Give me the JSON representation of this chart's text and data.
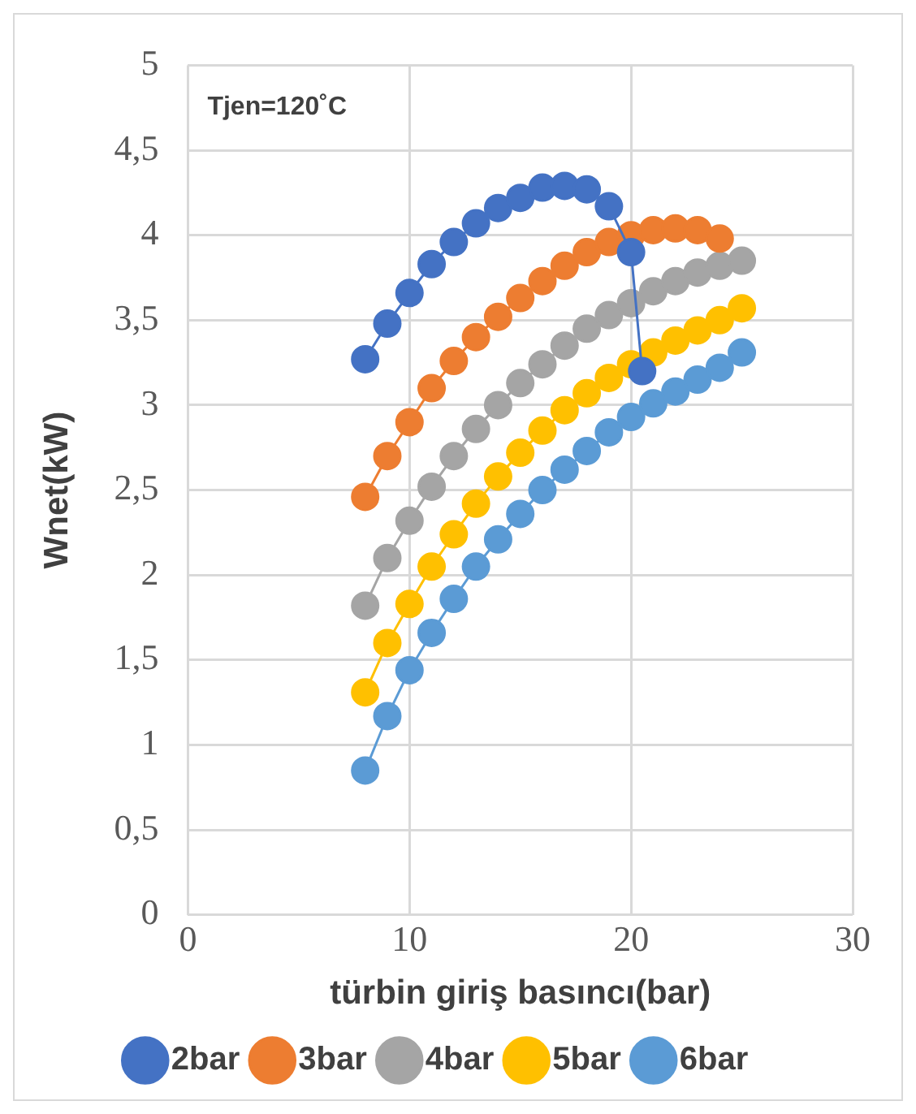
{
  "chart_data": {
    "type": "line",
    "xlabel": "türbin giriş basıncı(bar)",
    "ylabel": "Wnet(kW)",
    "annotations": [
      "Tjen=120˚C"
    ],
    "x": [
      8,
      9,
      10,
      11,
      12,
      13,
      14,
      15,
      16,
      17,
      18,
      19,
      20,
      21,
      22,
      23,
      24,
      25
    ],
    "series": [
      {
        "name": "2bar",
        "color": "#4472c4",
        "x": [
          8,
          9,
          10,
          11,
          12,
          13,
          14,
          15,
          16,
          17,
          18,
          19,
          20,
          20.5
        ],
        "values": [
          3.27,
          3.48,
          3.66,
          3.83,
          3.96,
          4.07,
          4.16,
          4.22,
          4.28,
          4.29,
          4.27,
          4.17,
          3.9,
          3.2
        ]
      },
      {
        "name": "3bar",
        "color": "#ed7d31",
        "x": [
          8,
          9,
          10,
          11,
          12,
          13,
          14,
          15,
          16,
          17,
          18,
          19,
          20,
          21,
          22,
          23,
          24
        ],
        "values": [
          2.46,
          2.7,
          2.9,
          3.1,
          3.26,
          3.4,
          3.52,
          3.63,
          3.73,
          3.82,
          3.9,
          3.96,
          4.0,
          4.03,
          4.04,
          4.03,
          3.98
        ]
      },
      {
        "name": "4bar",
        "color": "#a5a5a5",
        "values": [
          1.82,
          2.1,
          2.32,
          2.52,
          2.7,
          2.86,
          3.0,
          3.13,
          3.24,
          3.35,
          3.45,
          3.53,
          3.6,
          3.67,
          3.73,
          3.78,
          3.82,
          3.85
        ]
      },
      {
        "name": "5bar",
        "color": "#ffc000",
        "values": [
          1.31,
          1.6,
          1.83,
          2.05,
          2.24,
          2.42,
          2.58,
          2.72,
          2.85,
          2.97,
          3.07,
          3.16,
          3.24,
          3.31,
          3.38,
          3.44,
          3.5,
          3.57
        ]
      },
      {
        "name": "6bar",
        "color": "#5b9bd5",
        "values": [
          0.85,
          1.17,
          1.44,
          1.66,
          1.86,
          2.05,
          2.21,
          2.36,
          2.5,
          2.62,
          2.73,
          2.84,
          2.93,
          3.01,
          3.08,
          3.15,
          3.22,
          3.31
        ]
      }
    ],
    "xlim": [
      0,
      30
    ],
    "xticks": [
      0,
      10,
      20,
      30
    ],
    "ylim": [
      0,
      5
    ],
    "yticks": [
      0,
      {
        "value": 0.5,
        "label": "0,5"
      },
      1,
      {
        "value": 1.5,
        "label": "1,5"
      },
      2,
      {
        "value": 2.5,
        "label": "2,5"
      },
      3,
      {
        "value": 3.5,
        "label": "3,5"
      },
      4,
      {
        "value": 4.5,
        "label": "4,5"
      },
      5
    ],
    "grid": true,
    "legend": "bottom",
    "marker": "circle",
    "line_style": "solid"
  }
}
